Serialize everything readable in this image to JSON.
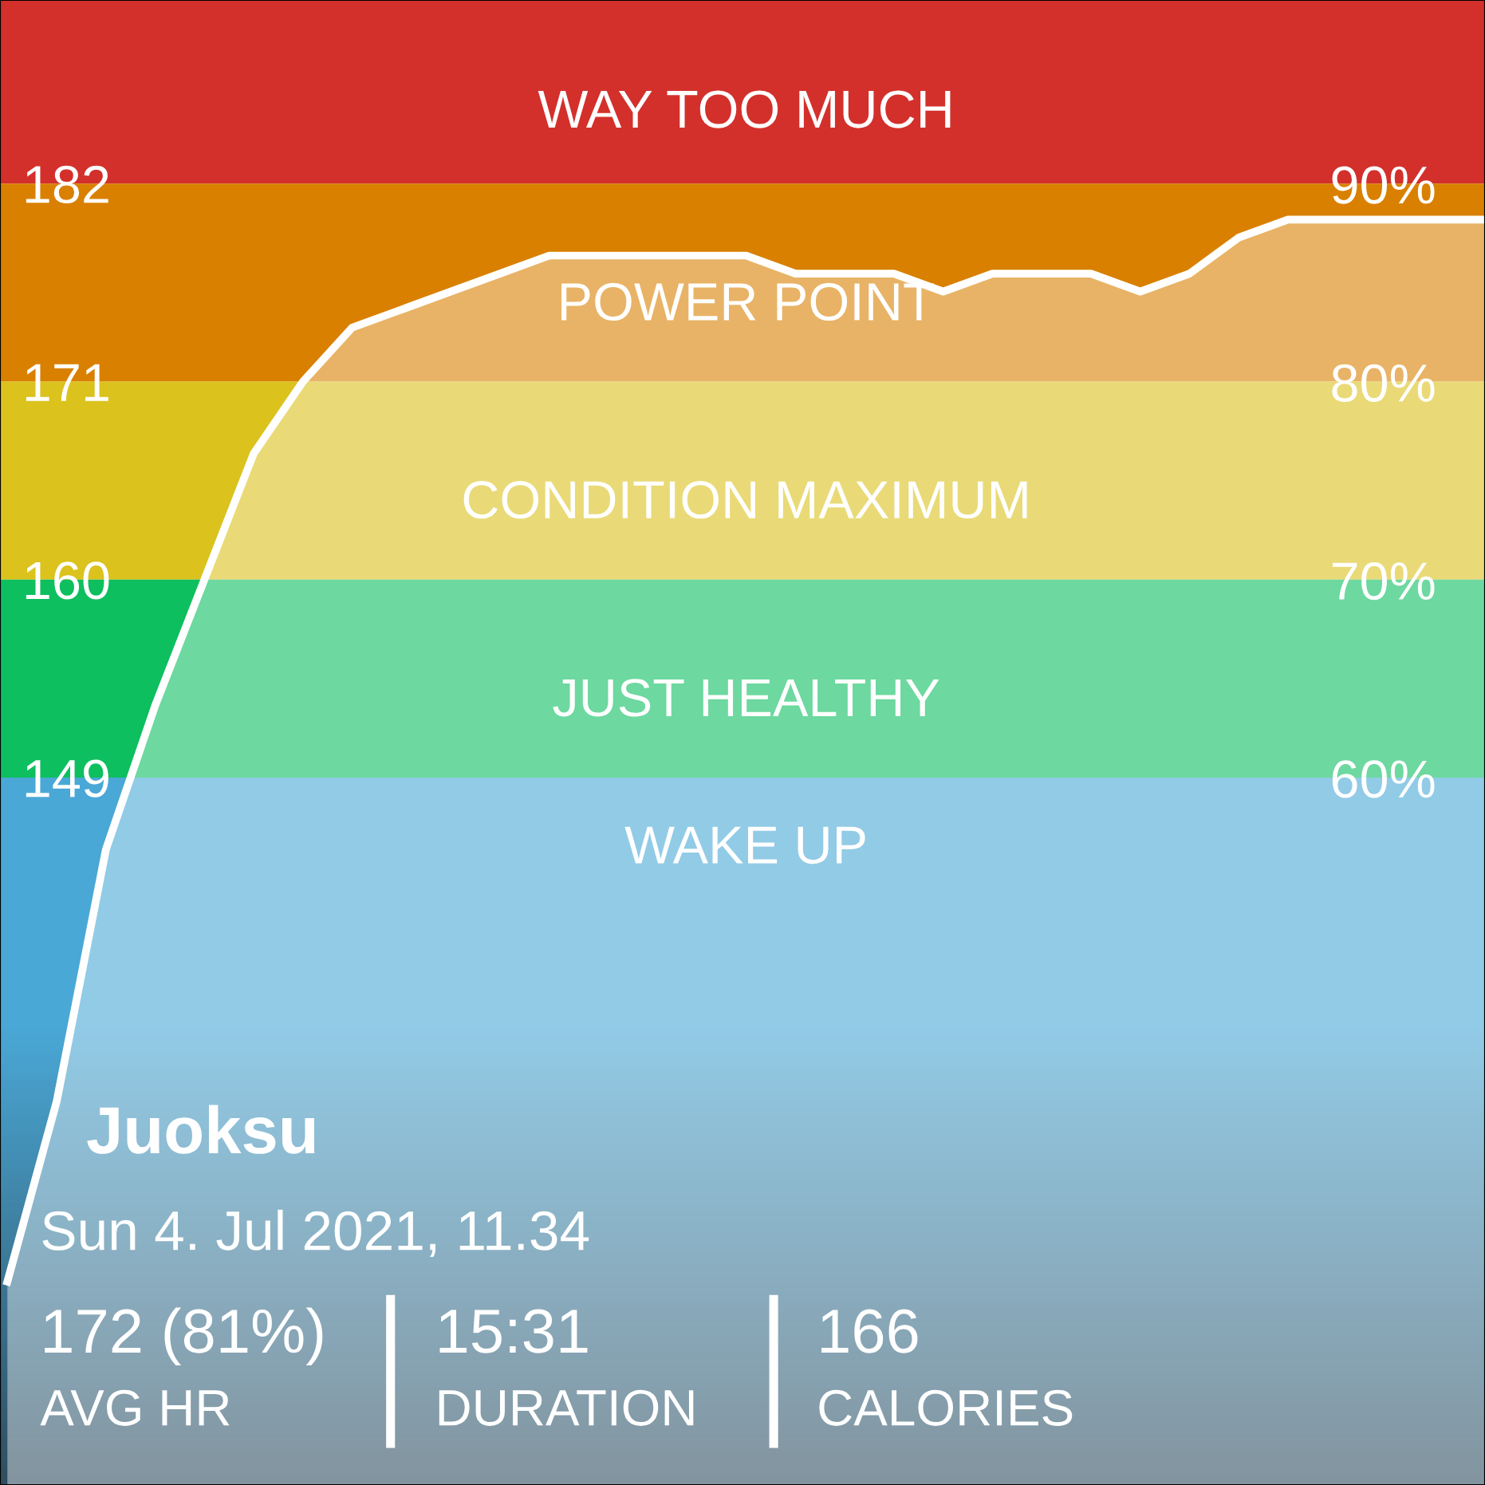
{
  "chart_data": {
    "type": "area",
    "title": "Juoksu",
    "subtitle": "Sun 4. Jul 2021, 11.34",
    "categories": [
      null,
      null,
      null,
      null,
      null,
      null,
      null,
      null,
      null,
      null,
      null,
      null,
      null,
      null,
      null,
      null,
      null,
      null,
      null,
      null,
      null,
      null,
      null,
      null,
      null,
      null,
      null,
      null,
      null,
      null,
      null
    ],
    "series": [
      {
        "color": "#ffffff",
        "values": [
          121,
          131,
          145,
          153,
          160,
          167,
          171,
          174,
          175,
          176,
          177,
          178,
          178,
          178,
          178,
          178,
          177,
          177,
          177,
          176,
          177,
          177,
          177,
          176,
          177,
          179,
          180,
          180,
          180,
          180,
          180
        ]
      }
    ],
    "ylim": [
      109.7,
      192.2
    ],
    "yticks": [
      149,
      160,
      171,
      182
    ],
    "y2lim": [
      24.3,
      99.3
    ],
    "y2ticks": [
      {
        "value": 60,
        "label": "60%"
      },
      {
        "value": 70,
        "label": "70%"
      },
      {
        "value": 80,
        "label": "80%"
      },
      {
        "value": 90,
        "label": "90%"
      }
    ],
    "bands": [
      {
        "axis": "y",
        "from": 182,
        "to": 192.2,
        "label": "WAY TOO MUCH",
        "color": "#d3302c"
      },
      {
        "axis": "y",
        "from": 171,
        "to": 182,
        "label": "POWER POINT",
        "color": "#d98000"
      },
      {
        "axis": "y",
        "from": 160,
        "to": 171,
        "label": "CONDITION MAXIMUM",
        "color": "#dbc21d"
      },
      {
        "axis": "y",
        "from": 149,
        "to": 160,
        "label": "JUST HEALTHY",
        "color": "#0dbf5f"
      },
      {
        "axis": "y",
        "from": 109.7,
        "to": 149,
        "label": "WAKE UP",
        "color": "#4aa8d6"
      }
    ],
    "annotations": [
      "172 (81%)",
      "AVG HR",
      "15:31",
      "DURATION",
      "166",
      "CALORIES"
    ],
    "grid": false,
    "legend": false
  }
}
